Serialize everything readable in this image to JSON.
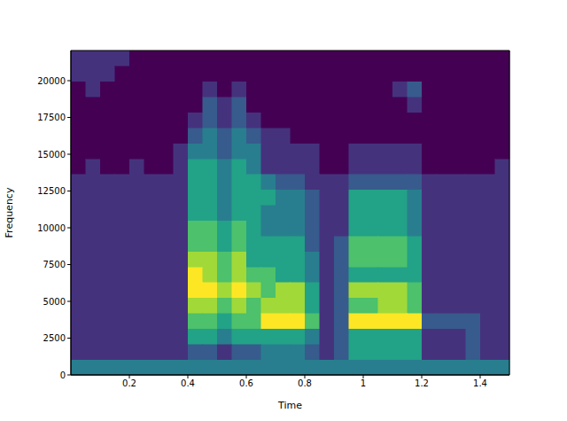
{
  "chart_data": {
    "type": "heatmap",
    "x_label": "Time",
    "y_label": "Frequency",
    "xlim": [
      0,
      1.5
    ],
    "ylim": [
      0,
      22050
    ],
    "xticks": [
      0.2,
      0.4,
      0.6,
      0.8,
      1.0,
      1.2,
      1.4
    ],
    "yticks": [
      0,
      2500,
      5000,
      7500,
      10000,
      12500,
      15000,
      17500,
      20000
    ],
    "x_bins": [
      0,
      0.05,
      0.1,
      0.15,
      0.2,
      0.25,
      0.3,
      0.35,
      0.4,
      0.45,
      0.5,
      0.55,
      0.6,
      0.65,
      0.7,
      0.75,
      0.8,
      0.85,
      0.9,
      0.95,
      1.0,
      1.05,
      1.1,
      1.15,
      1.2,
      1.25,
      1.3,
      1.35,
      1.4,
      1.45,
      1.5
    ],
    "y_bins": [
      0,
      1050,
      2100,
      3150,
      4200,
      5250,
      6300,
      7350,
      8400,
      9450,
      10500,
      11550,
      12600,
      13650,
      14700,
      15750,
      16800,
      17850,
      18900,
      19950,
      21000,
      22050
    ],
    "cells": [
      [
        5,
        3,
        3,
        3,
        3,
        3,
        3,
        3,
        3,
        3,
        3,
        3,
        3,
        2,
        2,
        2,
        2,
        2,
        2,
        3,
        3
      ],
      [
        5,
        3,
        3,
        3,
        3,
        3,
        3,
        3,
        3,
        3,
        3,
        3,
        3,
        3,
        2,
        2,
        2,
        2,
        3,
        3,
        3
      ],
      [
        5,
        3,
        3,
        3,
        3,
        3,
        3,
        3,
        3,
        3,
        3,
        3,
        3,
        2,
        2,
        2,
        2,
        2,
        2,
        3,
        3
      ],
      [
        5,
        3,
        3,
        3,
        3,
        3,
        3,
        3,
        3,
        3,
        3,
        3,
        3,
        2,
        2,
        2,
        2,
        2,
        2,
        2,
        3
      ],
      [
        5,
        3,
        3,
        3,
        3,
        3,
        3,
        3,
        3,
        3,
        3,
        3,
        3,
        3,
        2,
        2,
        2,
        2,
        2,
        2,
        2
      ],
      [
        5,
        3,
        3,
        3,
        3,
        3,
        3,
        3,
        3,
        3,
        3,
        3,
        3,
        2,
        2,
        2,
        2,
        2,
        2,
        2,
        2
      ],
      [
        5,
        3,
        3,
        3,
        3,
        3,
        3,
        3,
        3,
        3,
        3,
        3,
        3,
        2,
        2,
        2,
        2,
        2,
        2,
        2,
        2
      ],
      [
        5,
        3,
        3,
        3,
        3,
        3,
        3,
        3,
        3,
        3,
        3,
        3,
        3,
        3,
        3,
        2,
        2,
        2,
        2,
        2,
        2
      ],
      [
        5,
        4,
        6,
        7,
        8,
        9,
        9,
        8,
        7,
        7,
        6,
        6,
        6,
        6,
        5,
        4,
        3,
        2,
        2,
        2,
        2
      ],
      [
        5,
        4,
        6,
        7,
        8,
        9,
        8,
        8,
        7,
        7,
        6,
        6,
        6,
        6,
        5,
        5,
        4,
        4,
        3,
        2,
        2
      ],
      [
        5,
        3,
        5,
        6,
        7,
        8,
        7,
        7,
        6,
        6,
        5,
        5,
        5,
        5,
        4,
        4,
        3,
        3,
        2,
        2,
        2
      ],
      [
        5,
        4,
        6,
        7,
        8,
        9,
        8,
        8,
        7,
        7,
        6,
        6,
        6,
        6,
        5,
        5,
        4,
        4,
        3,
        2,
        2
      ],
      [
        5,
        4,
        6,
        7,
        7,
        8,
        7,
        6,
        6,
        6,
        6,
        6,
        6,
        5,
        5,
        4,
        3,
        2,
        2,
        2,
        2
      ],
      [
        5,
        5,
        6,
        9,
        8,
        7,
        7,
        6,
        6,
        5,
        5,
        6,
        5,
        3,
        3,
        3,
        2,
        2,
        2,
        2,
        2
      ],
      [
        5,
        5,
        6,
        9,
        8,
        8,
        6,
        6,
        6,
        5,
        5,
        5,
        4,
        3,
        3,
        3,
        2,
        2,
        2,
        2,
        2
      ],
      [
        5,
        5,
        6,
        9,
        8,
        8,
        6,
        6,
        6,
        5,
        5,
        5,
        4,
        3,
        3,
        2,
        2,
        2,
        2,
        2,
        2
      ],
      [
        5,
        4,
        5,
        7,
        6,
        6,
        5,
        5,
        4,
        4,
        4,
        4,
        3,
        3,
        3,
        2,
        2,
        2,
        2,
        2,
        2
      ],
      [
        5,
        3,
        3,
        3,
        3,
        3,
        3,
        3,
        3,
        3,
        3,
        3,
        3,
        2,
        2,
        2,
        2,
        2,
        2,
        2,
        2
      ],
      [
        5,
        4,
        4,
        4,
        4,
        4,
        4,
        4,
        4,
        3,
        3,
        3,
        3,
        2,
        2,
        2,
        2,
        2,
        2,
        2,
        2
      ],
      [
        5,
        6,
        6,
        9,
        7,
        8,
        6,
        7,
        7,
        6,
        6,
        6,
        4,
        3,
        3,
        2,
        2,
        2,
        2,
        2,
        2
      ],
      [
        5,
        6,
        6,
        9,
        7,
        8,
        6,
        7,
        7,
        6,
        6,
        6,
        4,
        3,
        3,
        2,
        2,
        2,
        2,
        2,
        2
      ],
      [
        5,
        6,
        6,
        9,
        8,
        8,
        6,
        7,
        7,
        6,
        6,
        6,
        4,
        3,
        3,
        2,
        2,
        2,
        2,
        2,
        2
      ],
      [
        5,
        6,
        6,
        9,
        8,
        8,
        6,
        7,
        7,
        6,
        6,
        6,
        4,
        3,
        3,
        2,
        2,
        2,
        3,
        2,
        2
      ],
      [
        5,
        6,
        6,
        9,
        7,
        7,
        6,
        6,
        6,
        5,
        5,
        5,
        4,
        3,
        3,
        2,
        2,
        3,
        4,
        2,
        2
      ],
      [
        5,
        3,
        3,
        4,
        3,
        3,
        3,
        3,
        3,
        3,
        3,
        3,
        3,
        2,
        2,
        2,
        2,
        2,
        2,
        2,
        2
      ],
      [
        5,
        3,
        3,
        4,
        3,
        3,
        3,
        3,
        3,
        3,
        3,
        3,
        3,
        2,
        2,
        2,
        2,
        2,
        2,
        2,
        2
      ],
      [
        5,
        3,
        3,
        4,
        3,
        3,
        3,
        3,
        3,
        3,
        3,
        3,
        3,
        2,
        2,
        2,
        2,
        2,
        2,
        2,
        2
      ],
      [
        5,
        4,
        4,
        4,
        3,
        3,
        3,
        3,
        3,
        3,
        3,
        3,
        3,
        2,
        2,
        2,
        2,
        2,
        2,
        2,
        2
      ],
      [
        5,
        3,
        3,
        3,
        3,
        3,
        3,
        3,
        3,
        3,
        3,
        3,
        3,
        2,
        2,
        2,
        2,
        2,
        2,
        2,
        2
      ],
      [
        5,
        3,
        3,
        3,
        3,
        3,
        3,
        3,
        3,
        3,
        3,
        3,
        3,
        3,
        2,
        2,
        2,
        2,
        2,
        2,
        2
      ]
    ]
  }
}
